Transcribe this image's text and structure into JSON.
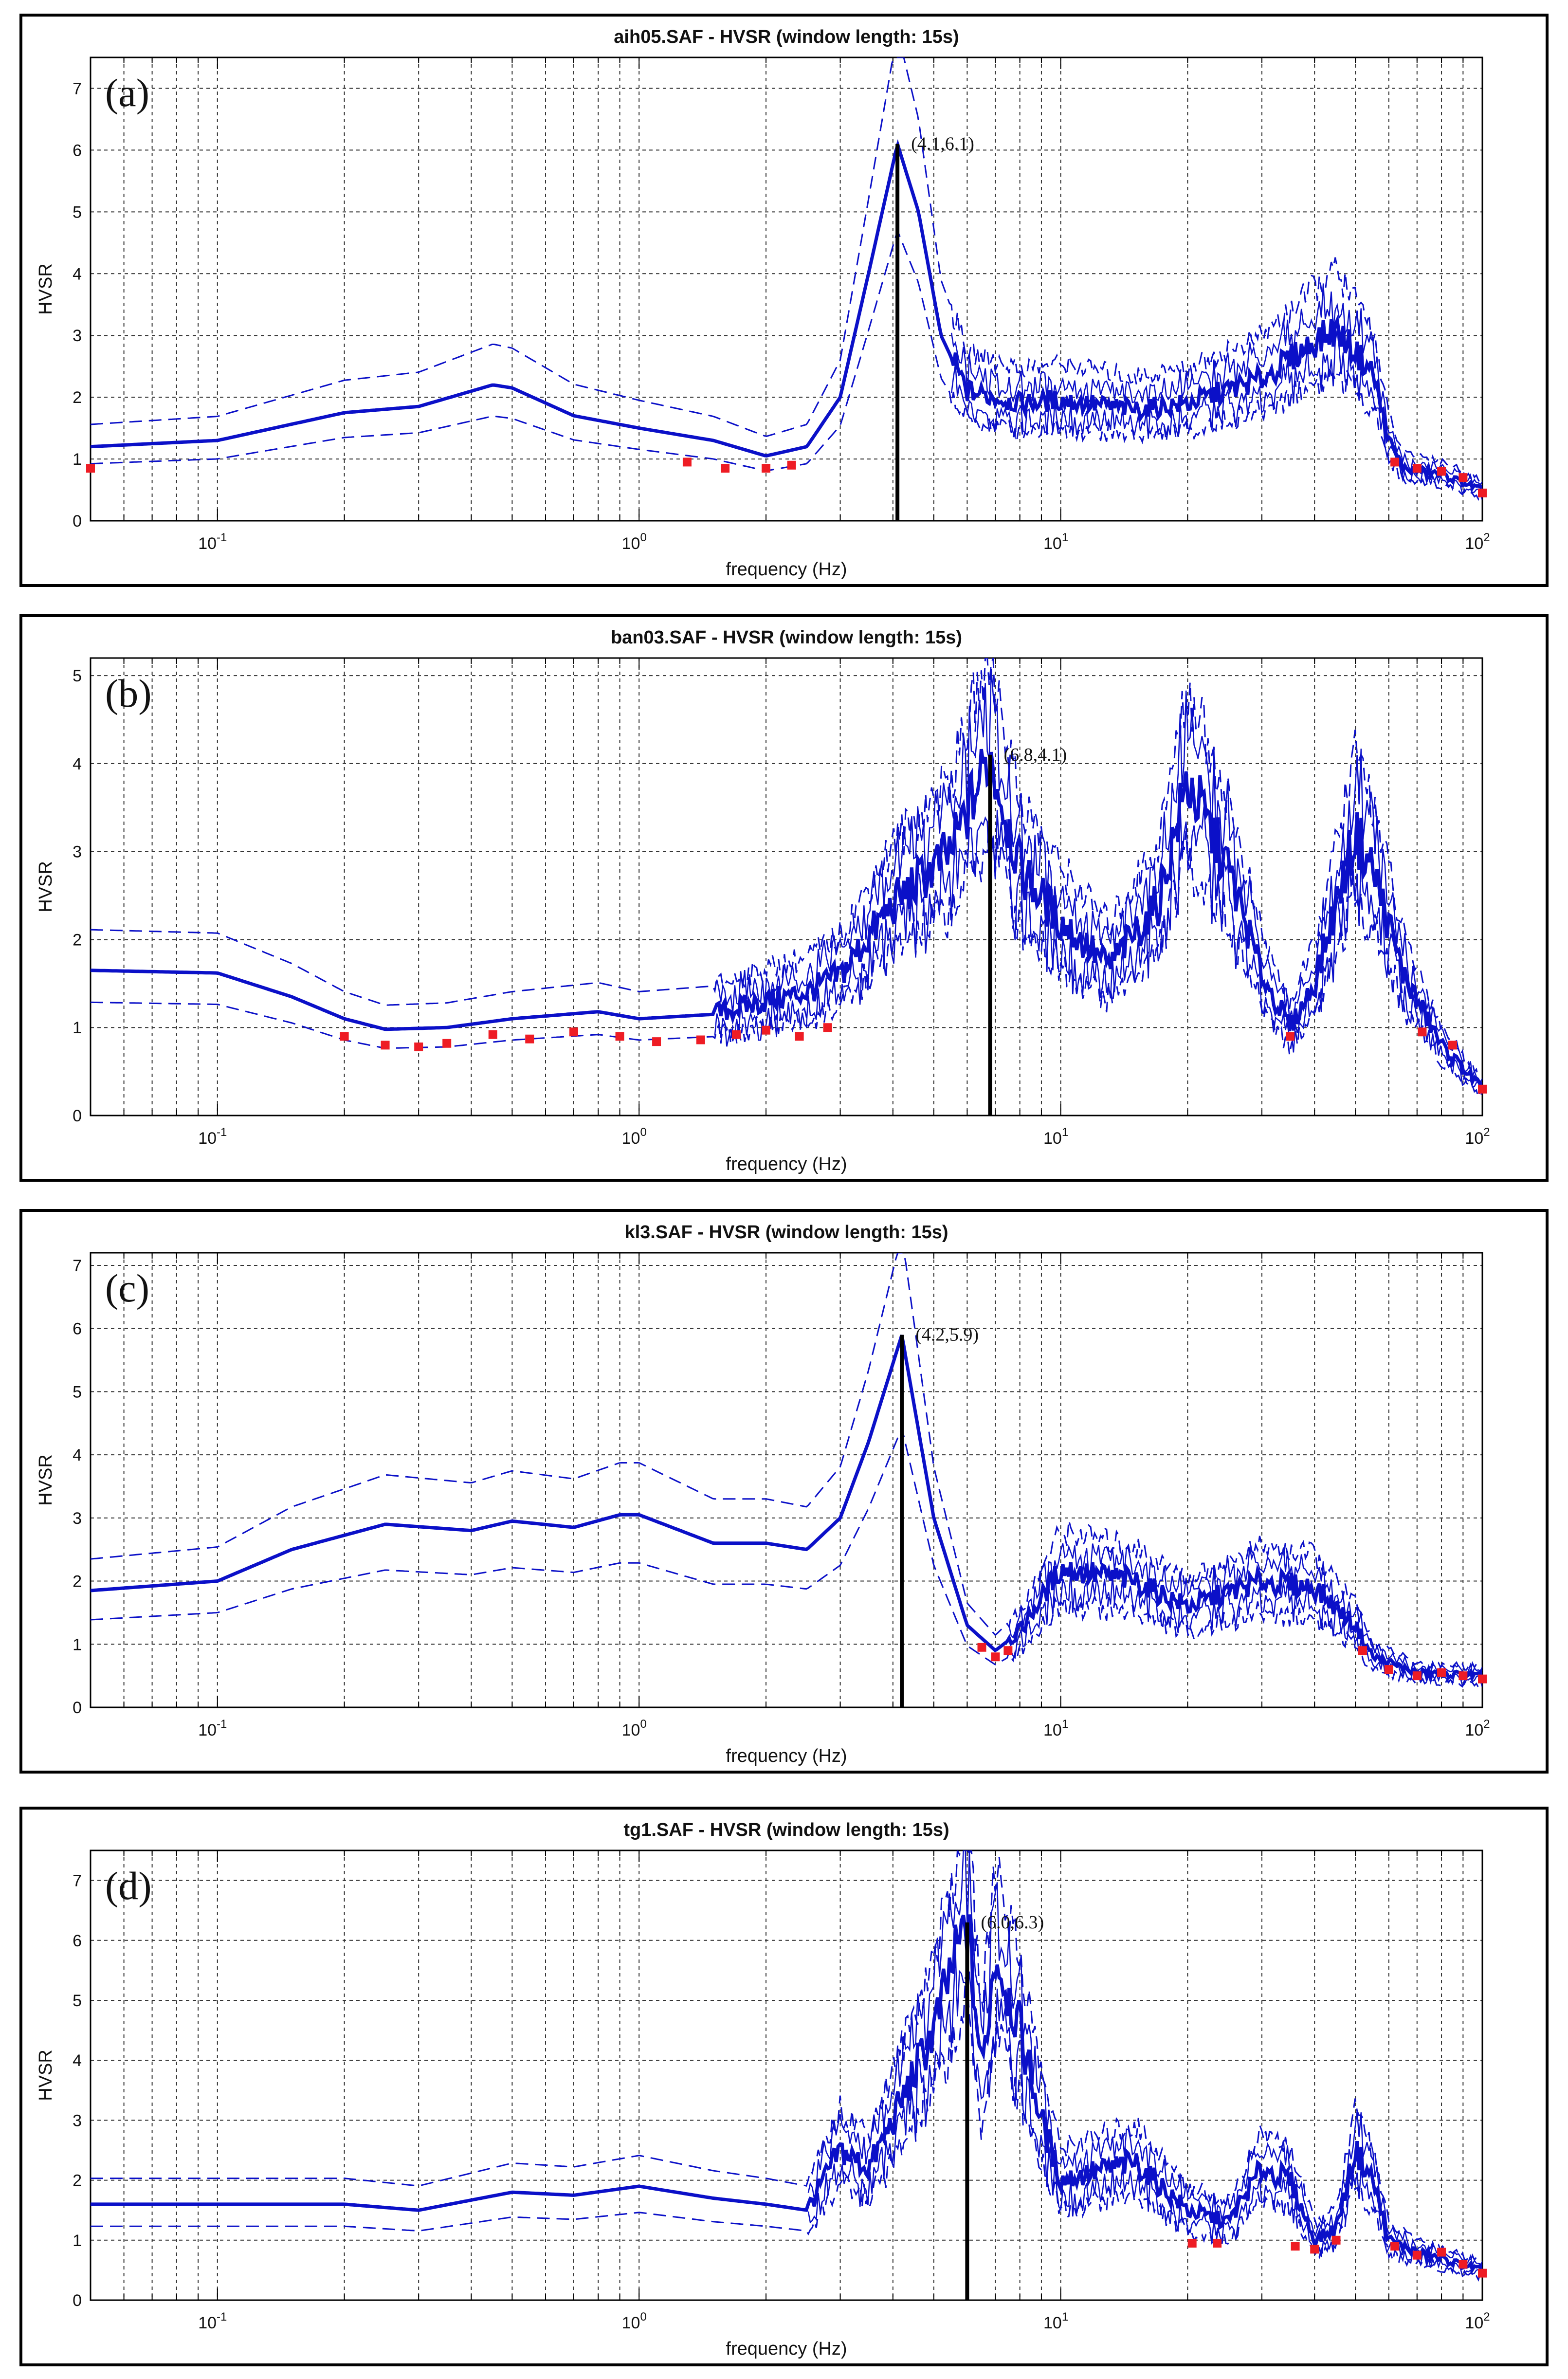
{
  "colors": {
    "curve": "#0b10c8",
    "bounds": "#0b10c8",
    "marker": "#ee1c24",
    "peak": "#000000"
  },
  "chart_data": [
    {
      "type": "line",
      "panel_label": "(a)",
      "title": "aih05.SAF - HVSR (window length: 15s)",
      "xlabel": "frequency (Hz)",
      "ylabel": "HVSR",
      "xscale": "log",
      "xlim": [
        0.05,
        100
      ],
      "ylim": [
        0,
        7.5
      ],
      "yticks": [
        "0",
        "1",
        "2",
        "3",
        "4",
        "5",
        "6",
        "7"
      ],
      "xticks": [
        {
          "base": "10",
          "exp": "-1"
        },
        {
          "base": "10",
          "exp": "0"
        },
        {
          "base": "10",
          "exp": "1"
        },
        {
          "base": "10",
          "exp": "2"
        }
      ],
      "peak": {
        "f": 4.1,
        "h": 6.1,
        "label": "(4.1,6.1)"
      },
      "anchors": [
        [
          0.05,
          1.2
        ],
        [
          0.1,
          1.3
        ],
        [
          0.2,
          1.75
        ],
        [
          0.3,
          1.85
        ],
        [
          0.45,
          2.2
        ],
        [
          0.5,
          2.15
        ],
        [
          0.7,
          1.7
        ],
        [
          1.0,
          1.5
        ],
        [
          1.5,
          1.3
        ],
        [
          2.0,
          1.05
        ],
        [
          2.5,
          1.2
        ],
        [
          3.0,
          2.0
        ],
        [
          3.5,
          4.0
        ],
        [
          4.1,
          6.1
        ],
        [
          4.6,
          5.0
        ],
        [
          5.2,
          3.0
        ],
        [
          6.0,
          2.1
        ],
        [
          8.0,
          1.9
        ],
        [
          10,
          1.95
        ],
        [
          15,
          1.8
        ],
        [
          20,
          1.9
        ],
        [
          30,
          2.3
        ],
        [
          40,
          2.9
        ],
        [
          45,
          3.1
        ],
        [
          55,
          2.4
        ],
        [
          60,
          1.3
        ],
        [
          65,
          0.85
        ],
        [
          80,
          0.75
        ],
        [
          100,
          0.5
        ]
      ],
      "noise_start": 5.5,
      "noise_amp": 0.18,
      "band_width": 0.28,
      "upper_factor": 1.3,
      "lower_factor": 0.77,
      "markers": [
        [
          0.05,
          0.85
        ],
        [
          1.3,
          0.95
        ],
        [
          1.6,
          0.85
        ],
        [
          2.0,
          0.85
        ],
        [
          2.3,
          0.9
        ],
        [
          62,
          0.95
        ],
        [
          70,
          0.85
        ],
        [
          80,
          0.8
        ],
        [
          90,
          0.7
        ],
        [
          100,
          0.45
        ]
      ]
    },
    {
      "type": "line",
      "panel_label": "(b)",
      "title": "ban03.SAF - HVSR (window length: 15s)",
      "xlabel": "frequency (Hz)",
      "ylabel": "HVSR",
      "xscale": "log",
      "xlim": [
        0.05,
        100
      ],
      "ylim": [
        0,
        5.2
      ],
      "yticks": [
        "0",
        "1",
        "2",
        "3",
        "4",
        "5"
      ],
      "xticks": [
        {
          "base": "10",
          "exp": "-1"
        },
        {
          "base": "10",
          "exp": "0"
        },
        {
          "base": "10",
          "exp": "1"
        },
        {
          "base": "10",
          "exp": "2"
        }
      ],
      "peak": {
        "f": 6.8,
        "h": 4.1,
        "label": "(6.8,4.1)"
      },
      "anchors": [
        [
          0.05,
          1.65
        ],
        [
          0.1,
          1.62
        ],
        [
          0.15,
          1.35
        ],
        [
          0.2,
          1.1
        ],
        [
          0.25,
          0.98
        ],
        [
          0.35,
          1.0
        ],
        [
          0.5,
          1.1
        ],
        [
          0.8,
          1.18
        ],
        [
          1.0,
          1.1
        ],
        [
          1.5,
          1.15
        ],
        [
          2.0,
          1.3
        ],
        [
          2.5,
          1.4
        ],
        [
          3.0,
          1.6
        ],
        [
          4.0,
          2.4
        ],
        [
          5.5,
          3.0
        ],
        [
          6.8,
          4.1
        ],
        [
          8.0,
          2.8
        ],
        [
          10,
          2.2
        ],
        [
          13,
          1.7
        ],
        [
          17,
          2.4
        ],
        [
          20,
          3.8
        ],
        [
          25,
          2.8
        ],
        [
          30,
          1.6
        ],
        [
          35,
          1.0
        ],
        [
          40,
          1.5
        ],
        [
          50,
          3.2
        ],
        [
          55,
          2.8
        ],
        [
          65,
          1.6
        ],
        [
          80,
          0.8
        ],
        [
          100,
          0.3
        ]
      ],
      "noise_start": 1.5,
      "noise_amp": 0.22,
      "band_width": 0.3,
      "upper_factor": 1.28,
      "lower_factor": 0.78,
      "markers": [
        [
          0.2,
          0.9
        ],
        [
          0.25,
          0.8
        ],
        [
          0.3,
          0.78
        ],
        [
          0.35,
          0.82
        ],
        [
          0.45,
          0.92
        ],
        [
          0.55,
          0.87
        ],
        [
          0.7,
          0.95
        ],
        [
          0.9,
          0.9
        ],
        [
          1.1,
          0.84
        ],
        [
          1.4,
          0.86
        ],
        [
          1.7,
          0.92
        ],
        [
          2.0,
          0.97
        ],
        [
          2.4,
          0.9
        ],
        [
          2.8,
          1.0
        ],
        [
          35,
          0.9
        ],
        [
          72,
          0.95
        ],
        [
          85,
          0.8
        ],
        [
          100,
          0.3
        ]
      ]
    },
    {
      "type": "line",
      "panel_label": "(c)",
      "title": "kl3.SAF - HVSR (window length: 15s)",
      "xlabel": "frequency (Hz)",
      "ylabel": "HVSR",
      "xscale": "log",
      "xlim": [
        0.05,
        100
      ],
      "ylim": [
        0,
        7.2
      ],
      "yticks": [
        "0",
        "1",
        "2",
        "3",
        "4",
        "5",
        "6",
        "7"
      ],
      "xticks": [
        {
          "base": "10",
          "exp": "-1"
        },
        {
          "base": "10",
          "exp": "0"
        },
        {
          "base": "10",
          "exp": "1"
        },
        {
          "base": "10",
          "exp": "2"
        }
      ],
      "peak": {
        "f": 4.2,
        "h": 5.9,
        "label": "(4.2,5.9)"
      },
      "anchors": [
        [
          0.05,
          1.85
        ],
        [
          0.1,
          2.0
        ],
        [
          0.15,
          2.5
        ],
        [
          0.25,
          2.9
        ],
        [
          0.4,
          2.8
        ],
        [
          0.5,
          2.95
        ],
        [
          0.7,
          2.85
        ],
        [
          0.9,
          3.05
        ],
        [
          1.0,
          3.05
        ],
        [
          1.5,
          2.6
        ],
        [
          2.0,
          2.6
        ],
        [
          2.5,
          2.5
        ],
        [
          3.0,
          3.0
        ],
        [
          3.5,
          4.2
        ],
        [
          4.2,
          5.9
        ],
        [
          5.0,
          3.0
        ],
        [
          6.0,
          1.3
        ],
        [
          7.0,
          0.9
        ],
        [
          8.0,
          1.2
        ],
        [
          10,
          2.2
        ],
        [
          15,
          2.0
        ],
        [
          20,
          1.6
        ],
        [
          30,
          2.0
        ],
        [
          40,
          1.9
        ],
        [
          50,
          1.3
        ],
        [
          55,
          0.8
        ],
        [
          70,
          0.55
        ],
        [
          100,
          0.5
        ]
      ],
      "noise_start": 7.5,
      "noise_amp": 0.2,
      "band_width": 0.28,
      "upper_factor": 1.27,
      "lower_factor": 0.75,
      "markers": [
        [
          6.5,
          0.95
        ],
        [
          7.0,
          0.8
        ],
        [
          7.5,
          0.9
        ],
        [
          52,
          0.9
        ],
        [
          60,
          0.6
        ],
        [
          70,
          0.5
        ],
        [
          80,
          0.55
        ],
        [
          90,
          0.5
        ],
        [
          100,
          0.45
        ]
      ]
    },
    {
      "type": "line",
      "panel_label": "(d)",
      "title": "tg1.SAF - HVSR (window length: 15s)",
      "xlabel": "frequency (Hz)",
      "ylabel": "HVSR",
      "xscale": "log",
      "xlim": [
        0.05,
        100
      ],
      "ylim": [
        0,
        7.5
      ],
      "yticks": [
        "0",
        "1",
        "2",
        "3",
        "4",
        "5",
        "6",
        "7"
      ],
      "xticks": [
        {
          "base": "10",
          "exp": "-1"
        },
        {
          "base": "10",
          "exp": "0"
        },
        {
          "base": "10",
          "exp": "1"
        },
        {
          "base": "10",
          "exp": "2"
        }
      ],
      "peak": {
        "f": 6.0,
        "h": 6.3,
        "label": "(6.0,6.3)"
      },
      "anchors": [
        [
          0.05,
          1.6
        ],
        [
          0.1,
          1.6
        ],
        [
          0.2,
          1.6
        ],
        [
          0.3,
          1.5
        ],
        [
          0.5,
          1.8
        ],
        [
          0.7,
          1.75
        ],
        [
          1.0,
          1.9
        ],
        [
          1.5,
          1.7
        ],
        [
          2.0,
          1.6
        ],
        [
          2.5,
          1.5
        ],
        [
          3.0,
          2.5
        ],
        [
          3.5,
          2.2
        ],
        [
          4.0,
          3.0
        ],
        [
          5.0,
          4.5
        ],
        [
          5.5,
          5.5
        ],
        [
          6.0,
          6.3
        ],
        [
          6.5,
          3.8
        ],
        [
          7.0,
          5.8
        ],
        [
          8.0,
          4.5
        ],
        [
          9.0,
          3.0
        ],
        [
          10,
          2.0
        ],
        [
          15,
          2.3
        ],
        [
          20,
          1.5
        ],
        [
          25,
          1.3
        ],
        [
          30,
          2.2
        ],
        [
          35,
          2.0
        ],
        [
          40,
          1.0
        ],
        [
          45,
          1.2
        ],
        [
          50,
          2.5
        ],
        [
          55,
          2.0
        ],
        [
          60,
          1.0
        ],
        [
          70,
          0.8
        ],
        [
          100,
          0.5
        ]
      ],
      "noise_start": 2.5,
      "noise_amp": 0.2,
      "band_width": 0.3,
      "upper_factor": 1.27,
      "lower_factor": 0.77,
      "markers": [
        [
          20.5,
          0.95
        ],
        [
          23.5,
          0.95
        ],
        [
          36,
          0.9
        ],
        [
          40,
          0.85
        ],
        [
          45,
          1.0
        ],
        [
          62,
          0.9
        ],
        [
          70,
          0.75
        ],
        [
          80,
          0.8
        ],
        [
          90,
          0.6
        ],
        [
          100,
          0.45
        ]
      ]
    }
  ]
}
